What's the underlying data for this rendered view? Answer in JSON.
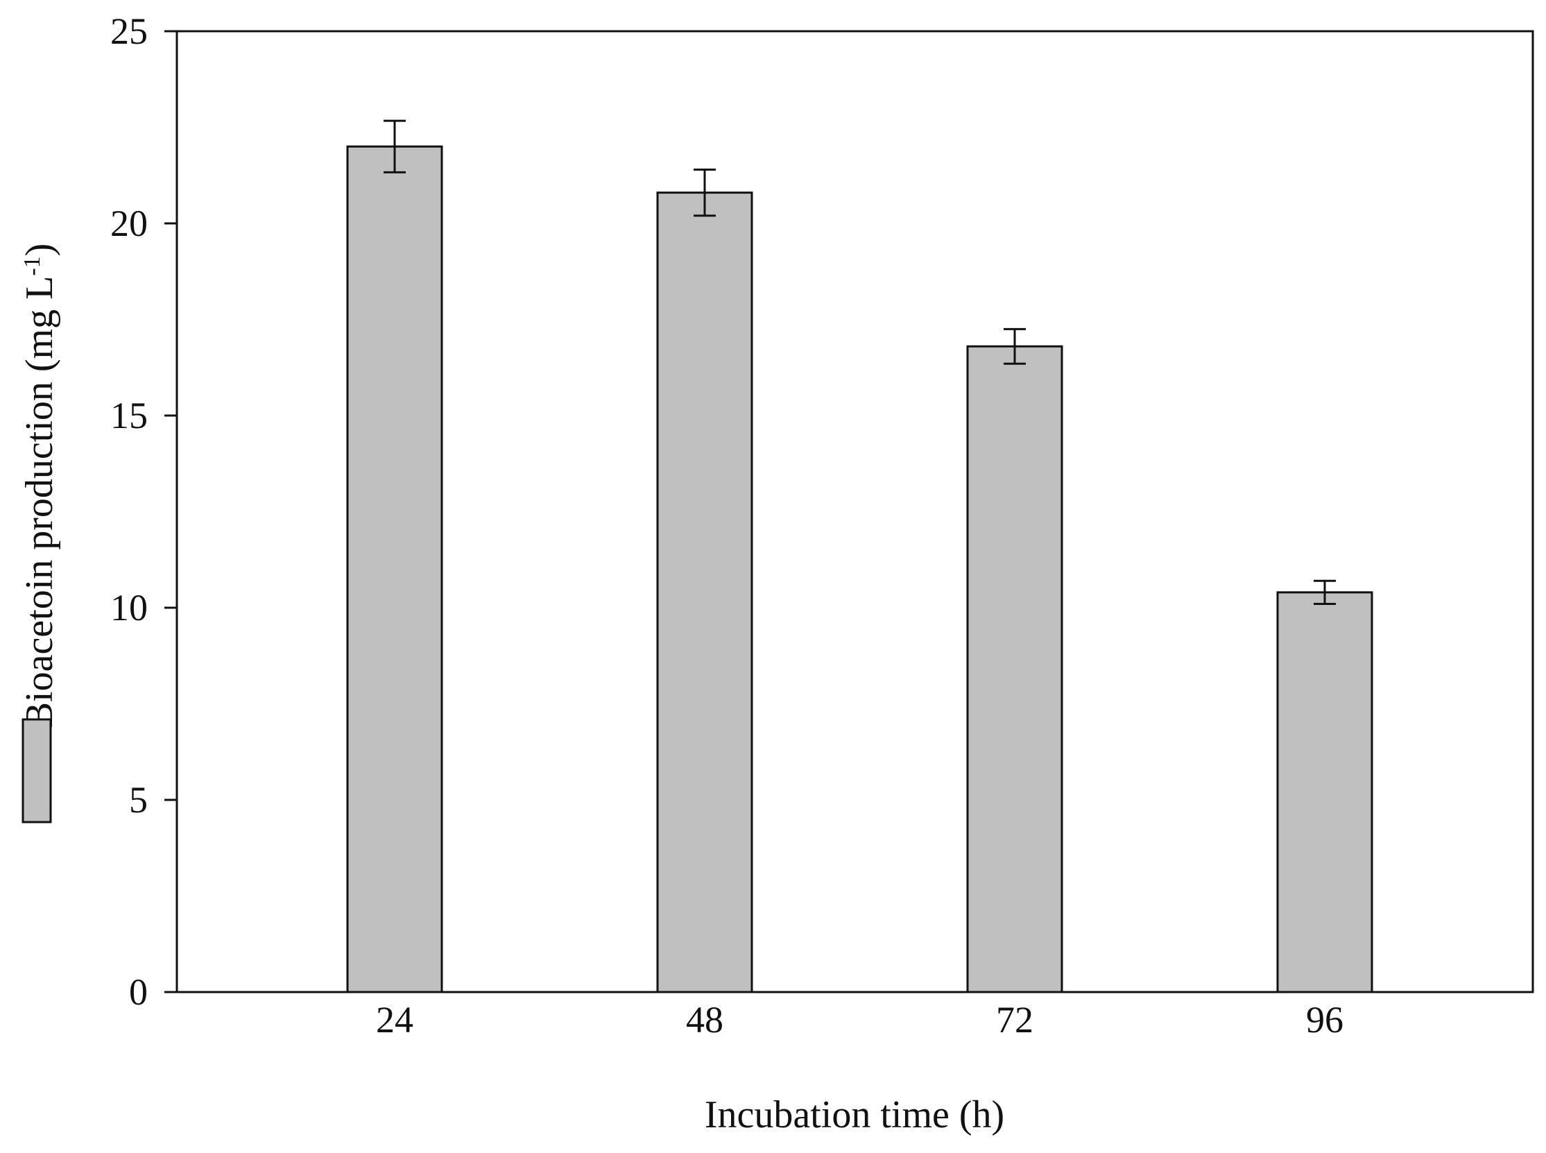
{
  "chart_data": {
    "type": "bar",
    "title": "",
    "xlabel": "Incubation time (h)",
    "ylabel": {
      "main": "Bioacetoin production (mg L",
      "superscript": "-1",
      "close": ")"
    },
    "categories": [
      "24",
      "48",
      "72",
      "96"
    ],
    "values": [
      22.0,
      20.8,
      16.8,
      10.4
    ],
    "error": [
      0.67,
      0.6,
      0.45,
      0.3
    ],
    "ylim": [
      0,
      25
    ],
    "yticks": [
      0,
      5,
      10,
      15,
      20,
      25
    ],
    "grid": false,
    "legend": "left, outside plot (color swatch only)",
    "colors": {
      "bar_fill": "#c0c0c0",
      "bar_stroke": "#111111",
      "axis": "#111111"
    }
  }
}
